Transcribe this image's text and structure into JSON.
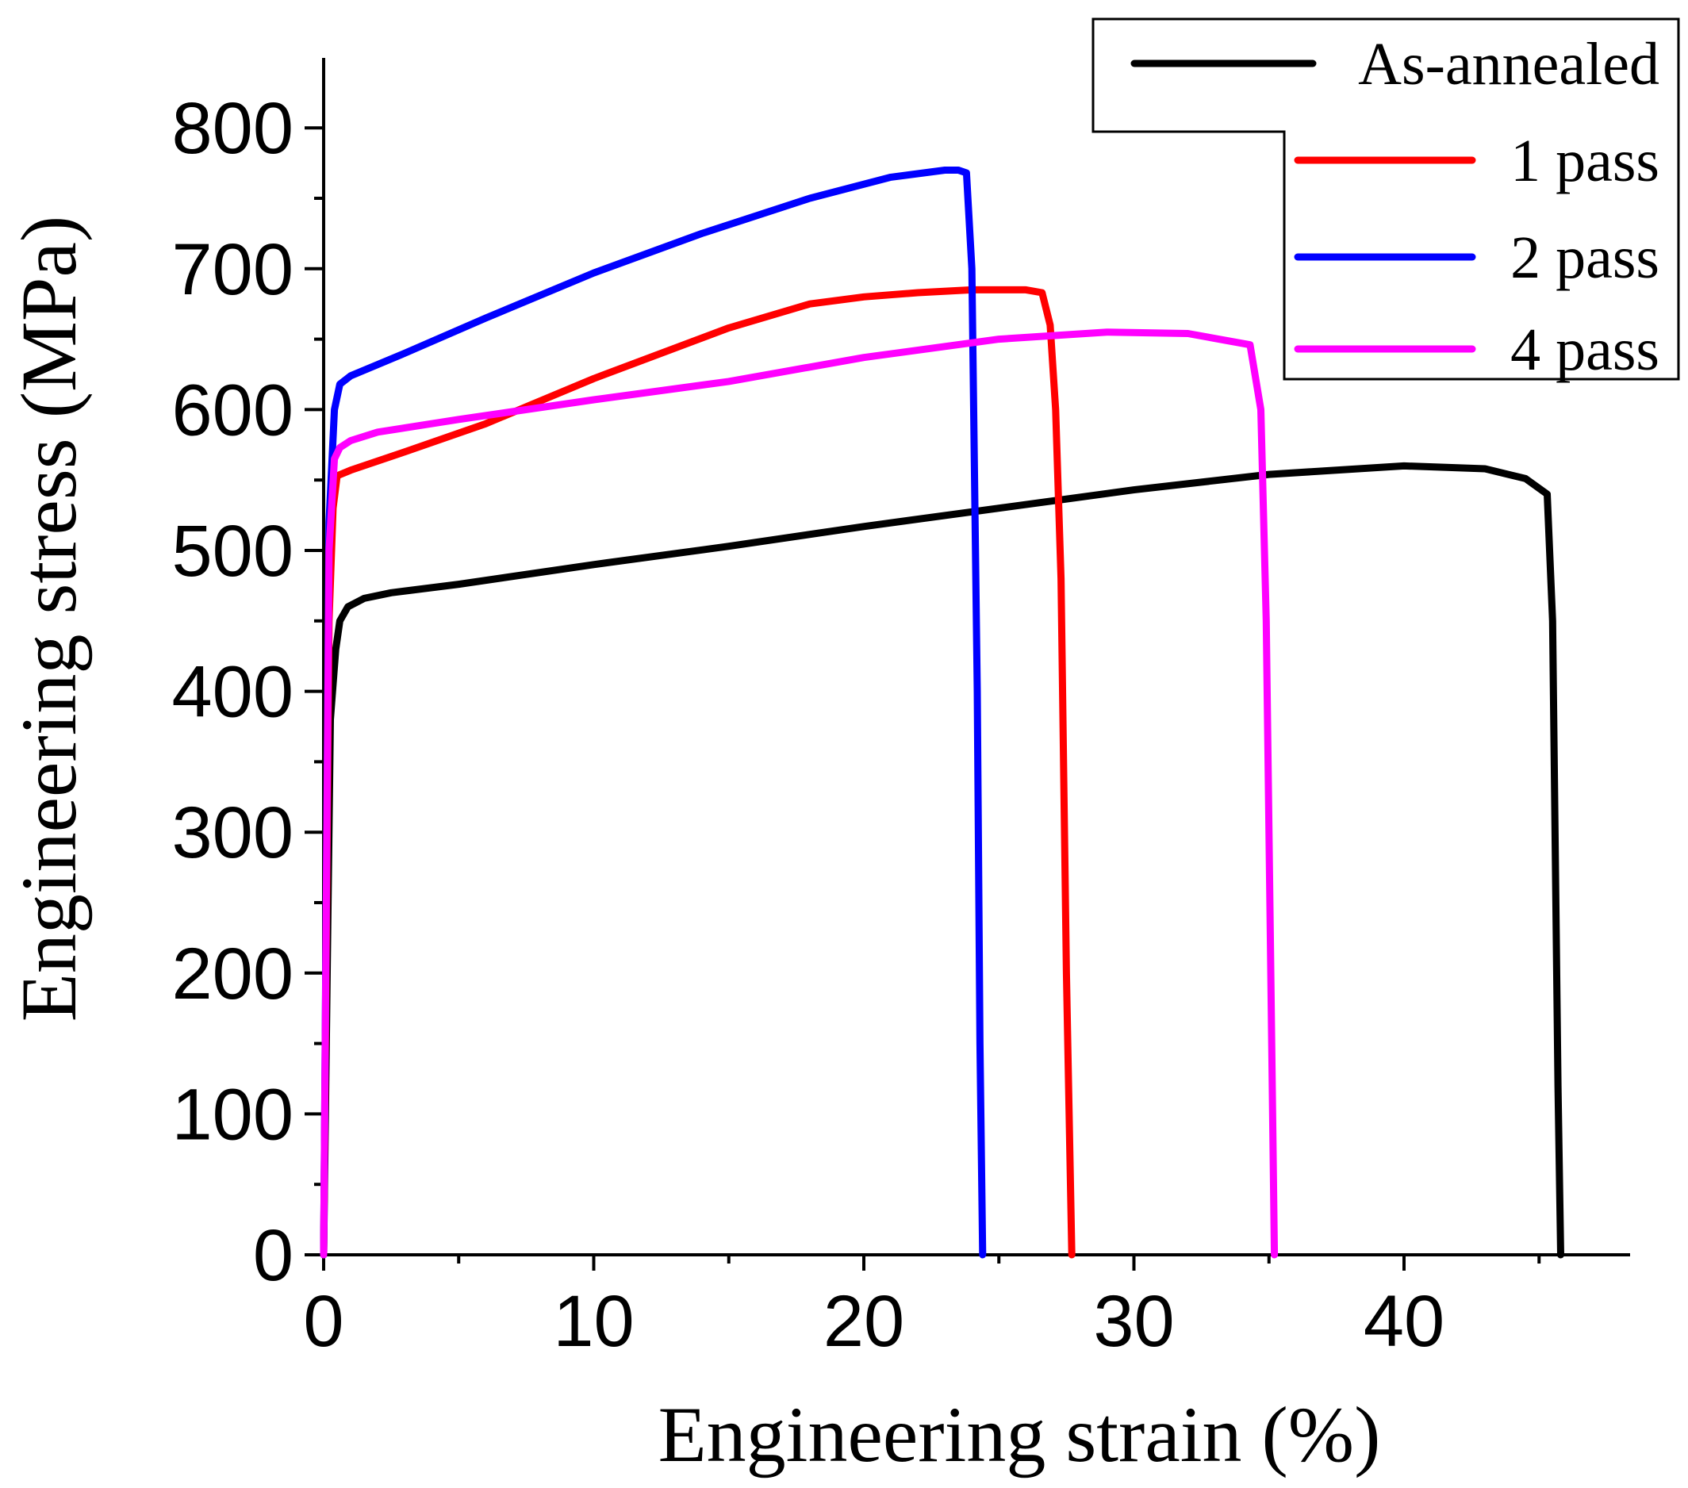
{
  "chart_data": {
    "type": "line",
    "title": "",
    "xlabel": "Engineering strain (%)",
    "ylabel": "Engineering stress (MPa)",
    "xlim": [
      0,
      48.5
    ],
    "ylim": [
      0,
      850
    ],
    "xticks": [
      0,
      10,
      20,
      30,
      40
    ],
    "yticks": [
      0,
      100,
      200,
      300,
      400,
      500,
      600,
      700,
      800
    ],
    "xtick_labels": [
      "0",
      "10",
      "20",
      "30",
      "40"
    ],
    "ytick_labels": [
      "0",
      "100",
      "200",
      "300",
      "400",
      "500",
      "600",
      "700",
      "800"
    ],
    "grid": false,
    "legend_position": "top-right",
    "series": [
      {
        "name": "As-annealed",
        "color": "#000000",
        "x": [
          0,
          0.25,
          0.45,
          0.6,
          0.9,
          1.5,
          2.5,
          5,
          10,
          15,
          20,
          25,
          30,
          35,
          40,
          43,
          44.5,
          45.3,
          45.5,
          45.7,
          45.8
        ],
        "y": [
          0,
          380,
          430,
          450,
          460,
          466,
          470,
          476,
          490,
          503,
          517,
          530,
          543,
          554,
          560,
          558,
          551,
          540,
          450,
          120,
          0
        ]
      },
      {
        "name": "1 pass",
        "color": "#ff0000",
        "x": [
          0,
          0.2,
          0.35,
          0.5,
          1,
          3,
          6,
          10,
          15,
          18,
          20,
          22,
          24,
          26,
          26.6,
          26.9,
          27.1,
          27.3,
          27.5,
          27.7
        ],
        "y": [
          0,
          450,
          530,
          553,
          557,
          570,
          590,
          622,
          658,
          675,
          680,
          683,
          685,
          685,
          683,
          660,
          600,
          480,
          200,
          0
        ]
      },
      {
        "name": "2 pass",
        "color": "#0000ff",
        "x": [
          0,
          0.2,
          0.4,
          0.6,
          1,
          3,
          6,
          10,
          14,
          18,
          21,
          23,
          23.5,
          23.8,
          24,
          24.2,
          24.3,
          24.4
        ],
        "y": [
          0,
          520,
          600,
          618,
          624,
          640,
          665,
          697,
          725,
          750,
          765,
          770,
          770,
          768,
          700,
          400,
          150,
          0
        ]
      },
      {
        "name": "4 pass",
        "color": "#ff00ff",
        "x": [
          0,
          0.2,
          0.4,
          0.6,
          1,
          2,
          5,
          10,
          15,
          20,
          25,
          29,
          32,
          34.3,
          34.7,
          34.9,
          35.1,
          35.2
        ],
        "y": [
          0,
          500,
          565,
          573,
          578,
          584,
          593,
          607,
          620,
          637,
          650,
          655,
          654,
          646,
          600,
          450,
          150,
          0
        ]
      }
    ]
  }
}
